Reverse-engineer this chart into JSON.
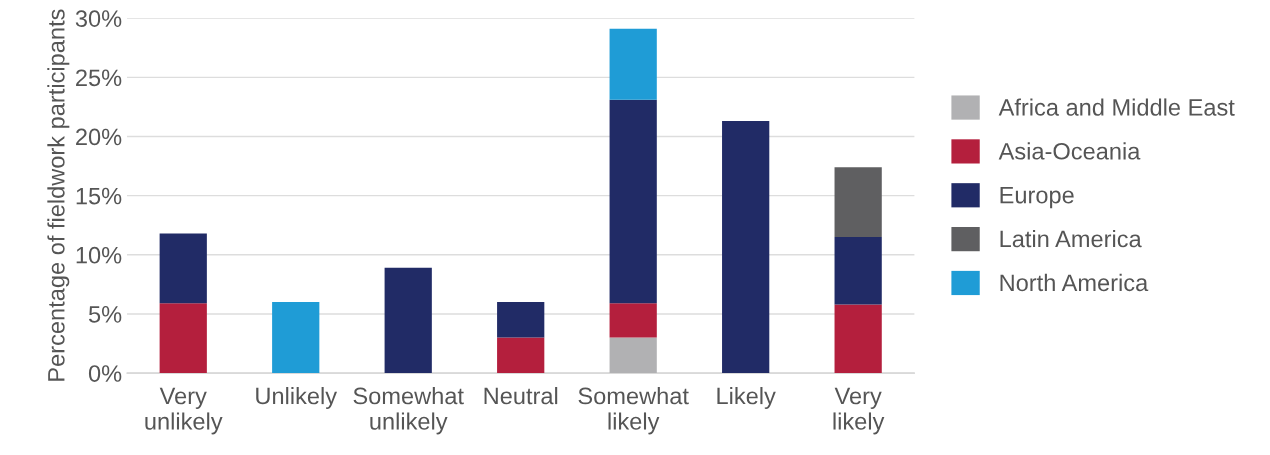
{
  "chart_data": {
    "type": "bar",
    "stacked": true,
    "ylabel": "Percentage of fieldwork participants",
    "categories": [
      "Very\nunlikely",
      "Unlikely",
      "Somewhat\nunlikely",
      "Neutral",
      "Somewhat\nlikely",
      "Likely",
      "Very\nlikely"
    ],
    "series": [
      {
        "name": "Africa and Middle East",
        "color": "#b1b1b3",
        "values": [
          0,
          0,
          0,
          0,
          3.0,
          0,
          0
        ]
      },
      {
        "name": "Asia-Oceania",
        "color": "#b41f3d",
        "values": [
          5.9,
          0,
          0,
          3.0,
          2.9,
          0,
          5.8
        ]
      },
      {
        "name": "Europe",
        "color": "#212b66",
        "values": [
          5.9,
          0,
          8.9,
          3.0,
          17.2,
          21.3,
          5.7
        ]
      },
      {
        "name": "Latin America",
        "color": "#5f5f61",
        "values": [
          0,
          0,
          0,
          0,
          0,
          0,
          5.9
        ]
      },
      {
        "name": "North America",
        "color": "#1f9cd6",
        "values": [
          0,
          6.0,
          0,
          0,
          6.0,
          0,
          0
        ]
      }
    ],
    "ylim": [
      0,
      30
    ],
    "yticks": [
      {
        "value": 0,
        "label": "0%"
      },
      {
        "value": 5,
        "label": "5%"
      },
      {
        "value": 10,
        "label": "10%"
      },
      {
        "value": 15,
        "label": "15%"
      },
      {
        "value": 20,
        "label": "20%"
      },
      {
        "value": 25,
        "label": "25%"
      },
      {
        "value": 30,
        "label": "30%"
      }
    ],
    "grid": "y",
    "legend": "right"
  }
}
